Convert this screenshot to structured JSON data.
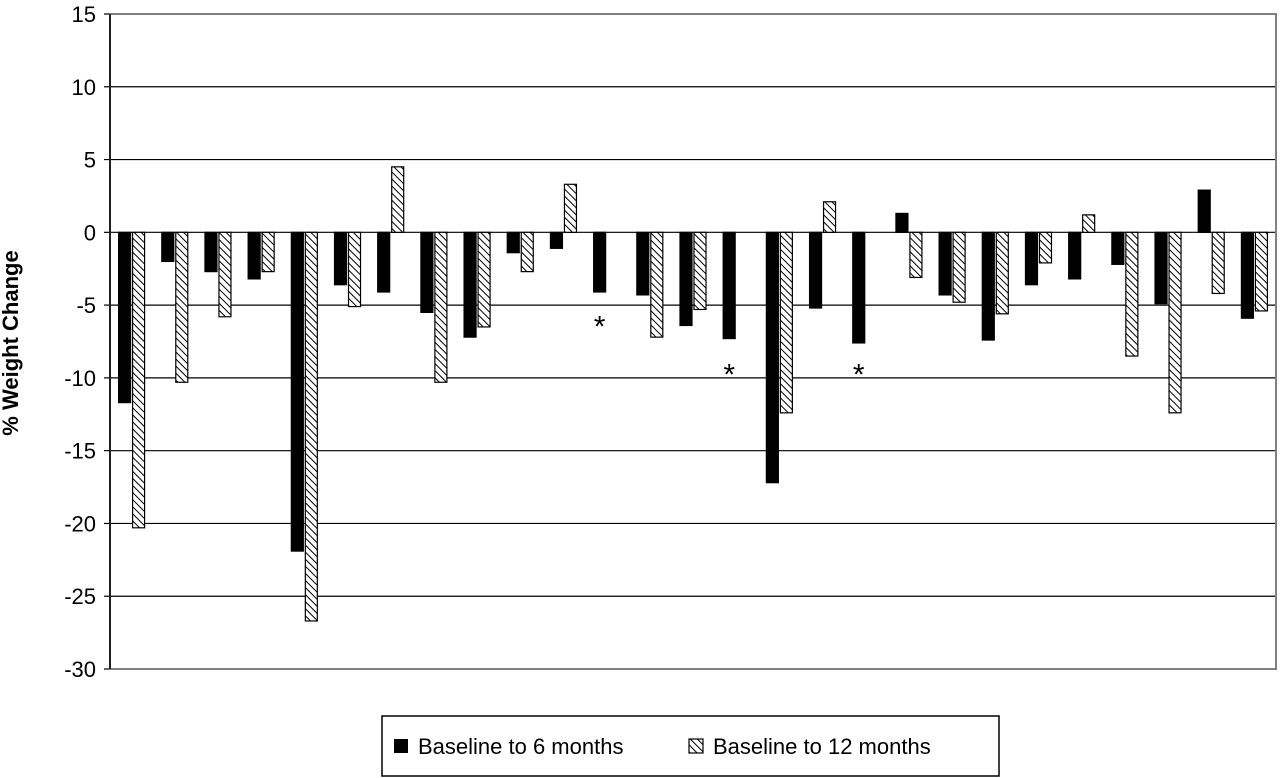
{
  "chart_data": {
    "type": "bar",
    "ylabel": "% Weight Change",
    "ylim": [
      -30,
      15
    ],
    "yticks": [
      15,
      10,
      5,
      0,
      -5,
      -10,
      -15,
      -20,
      -25,
      -30
    ],
    "grid": true,
    "legend_position": "bottom",
    "series": [
      {
        "name": "Baseline to 6 months",
        "color": "#000000",
        "pattern": "solid",
        "values": [
          -11.7,
          -2.0,
          -2.7,
          -3.2,
          -21.9,
          -3.6,
          -4.1,
          -5.5,
          -7.2,
          -1.4,
          -1.1,
          -4.1,
          -4.3,
          -6.4,
          -7.3,
          -17.2,
          -5.2,
          -7.6,
          1.3,
          -4.3,
          -7.4,
          -3.6,
          -3.2,
          -2.2,
          -4.9,
          2.9,
          -5.9
        ]
      },
      {
        "name": "Baseline to 12 months",
        "color": "#ffffff",
        "pattern": "hatched",
        "values": [
          -20.3,
          -10.3,
          -5.8,
          -2.7,
          -26.7,
          -5.1,
          4.5,
          -10.3,
          -6.5,
          -2.7,
          3.3,
          null,
          -7.2,
          -5.3,
          null,
          -12.4,
          2.1,
          null,
          -3.1,
          -4.8,
          -5.6,
          -2.1,
          1.2,
          -8.5,
          -12.4,
          -4.2,
          -5.4
        ]
      }
    ],
    "annotations": [
      {
        "text": "*",
        "index": 11,
        "y": -5.5
      },
      {
        "text": "*",
        "index": 14,
        "y": -8.8
      },
      {
        "text": "*",
        "index": 17,
        "y": -8.8
      }
    ]
  }
}
